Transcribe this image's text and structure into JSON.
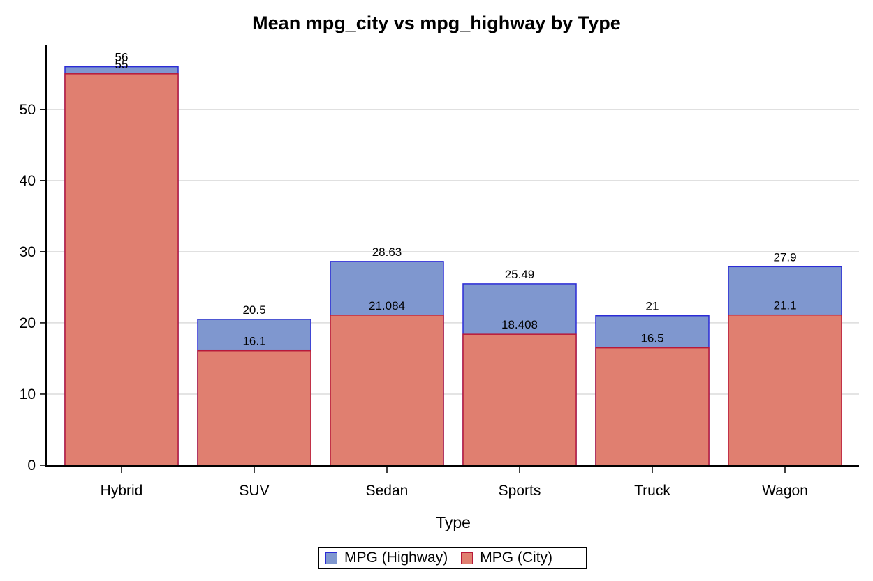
{
  "chart_data": {
    "type": "bar",
    "stacked": "overlay",
    "title": "Mean mpg_city vs mpg_highway by Type",
    "xlabel": "Type",
    "ylabel": "",
    "categories": [
      "Hybrid",
      "SUV",
      "Sedan",
      "Sports",
      "Truck",
      "Wagon"
    ],
    "series": [
      {
        "name": "MPG (Highway)",
        "values": [
          56,
          20.5,
          28.63,
          25.49,
          21,
          27.9
        ],
        "labels": [
          "56",
          "20.5",
          "28.63",
          "25.49",
          "21",
          "27.9"
        ],
        "fill": "#7f97cf",
        "stroke": "#2b2bd6"
      },
      {
        "name": "MPG (City)",
        "values": [
          55,
          16.1,
          21.084,
          18.408,
          16.5,
          21.1
        ],
        "labels": [
          "55",
          "16.1",
          "21.084",
          "18.408",
          "16.5",
          "21.1"
        ],
        "fill": "#e07f70",
        "stroke": "#b8193a"
      }
    ],
    "yticks": [
      0,
      10,
      20,
      30,
      40,
      50
    ],
    "ylim": [
      0,
      59
    ],
    "grid": true,
    "legend_position": "bottom"
  }
}
